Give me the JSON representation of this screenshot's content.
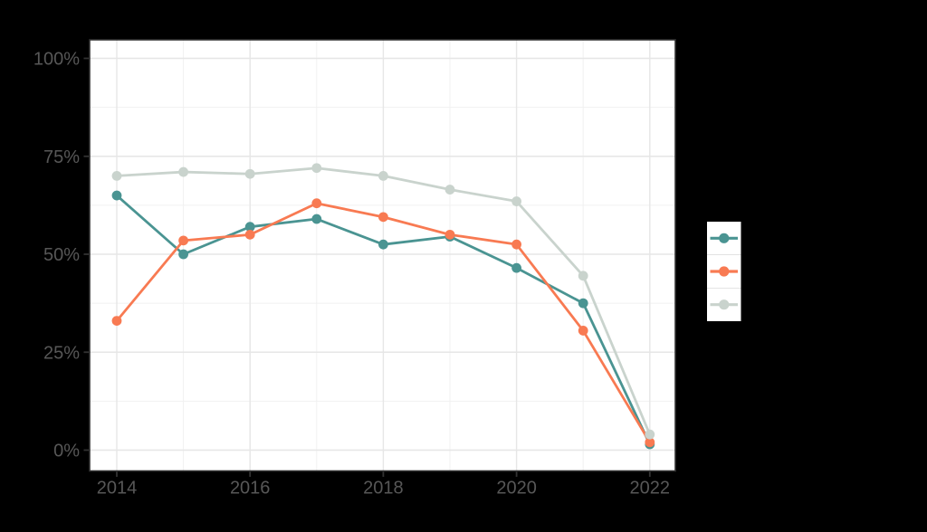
{
  "colors": {
    "background": "#000000",
    "panel": "#ffffff",
    "grid_major": "#e6e6e6",
    "grid_minor": "#f1f1f1",
    "panel_border": "#333333",
    "tick": "#333333",
    "axis_text": "#575757",
    "legend_key_bg": "#ffffff",
    "teal": "#4a9492",
    "orange": "#f87a52",
    "sage": "#c9d3cd"
  },
  "chart_data": {
    "type": "line",
    "x": [
      2014,
      2015,
      2016,
      2017,
      2018,
      2019,
      2020,
      2021,
      2022
    ],
    "x_major_ticks": [
      2014,
      2016,
      2018,
      2020,
      2022
    ],
    "x_tick_labels": [
      "2014",
      "2016",
      "2018",
      "2020",
      "2022"
    ],
    "x_minor_ticks": [
      2015,
      2017,
      2019,
      2021
    ],
    "y_major_ticks": [
      0,
      25,
      50,
      75,
      100
    ],
    "y_tick_labels": [
      "0%",
      "25%",
      "50%",
      "75%",
      "100%"
    ],
    "y_minor_ticks": [
      12.5,
      37.5,
      62.5,
      87.5
    ],
    "ylim": [
      0,
      100
    ],
    "grid": {
      "major": true,
      "minor": true
    },
    "legend": {
      "position": "right",
      "labels_visible": false
    },
    "series": [
      {
        "name": "series-teal",
        "color": "#4a9492",
        "values": [
          65,
          50,
          57,
          59,
          52.5,
          54.5,
          46.5,
          37.5,
          1.5
        ]
      },
      {
        "name": "series-orange",
        "color": "#f87a52",
        "values": [
          33,
          53.5,
          55,
          63,
          59.5,
          55,
          52.5,
          30.5,
          2
        ]
      },
      {
        "name": "series-sage",
        "color": "#c9d3cd",
        "values": [
          70,
          71,
          70.5,
          72,
          70,
          66.5,
          63.5,
          44.5,
          4
        ]
      }
    ]
  }
}
